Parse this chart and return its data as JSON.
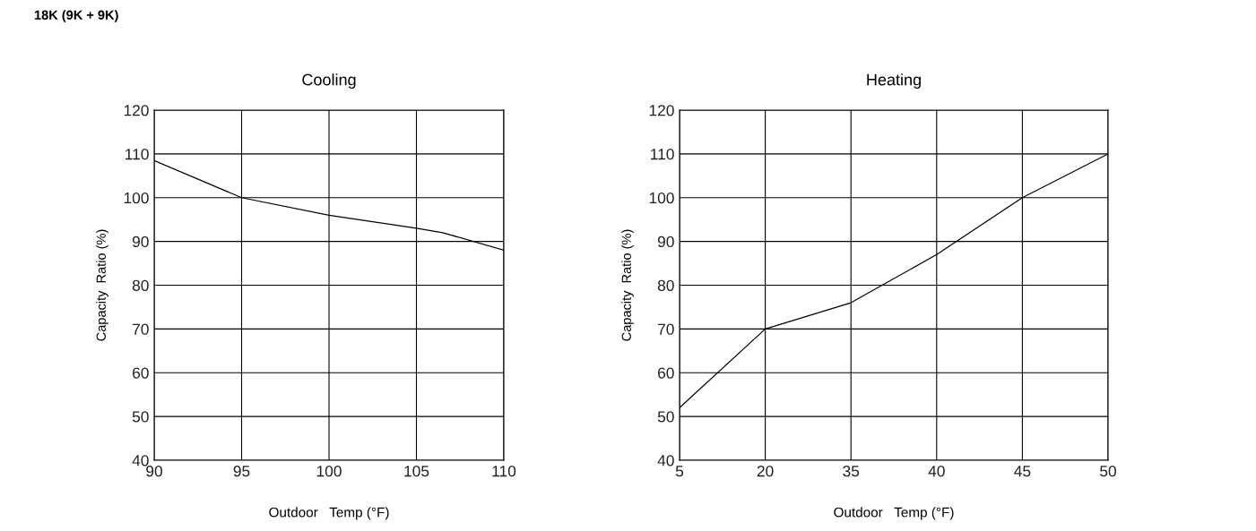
{
  "chart_data": [
    {
      "type": "line",
      "title": "Cooling",
      "xlabel": "Outdoor   Temp (°F)",
      "ylabel": "Capacity  Ratio (%)",
      "annotations": [
        "18K (9K + 9K)"
      ],
      "x": [
        90,
        95,
        100,
        105,
        106.5,
        110
      ],
      "series": [
        {
          "color": "#000000",
          "values": [
            108.5,
            100,
            96,
            93,
            92,
            88
          ]
        }
      ],
      "xlim": [
        90,
        110
      ],
      "xticks": [
        90,
        95,
        100,
        105,
        110
      ],
      "ylim": [
        40,
        120
      ],
      "yticks": [
        40,
        50,
        60,
        70,
        80,
        90,
        100,
        110,
        120
      ],
      "grid": true,
      "marker": "none",
      "line_style": "solid"
    },
    {
      "type": "line",
      "title": "Heating",
      "xlabel": "Outdoor   Temp (°F)",
      "ylabel": "Capacity  Ratio (%)",
      "categories": [
        "5",
        "20",
        "35",
        "40",
        "45",
        "50"
      ],
      "series": [
        {
          "color": "#000000",
          "values": [
            52,
            70,
            76,
            87,
            100,
            110
          ]
        }
      ],
      "ylim": [
        40,
        120
      ],
      "yticks": [
        40,
        50,
        60,
        70,
        80,
        90,
        100,
        110,
        120
      ],
      "grid": true,
      "marker": "none",
      "line_style": "solid"
    }
  ]
}
